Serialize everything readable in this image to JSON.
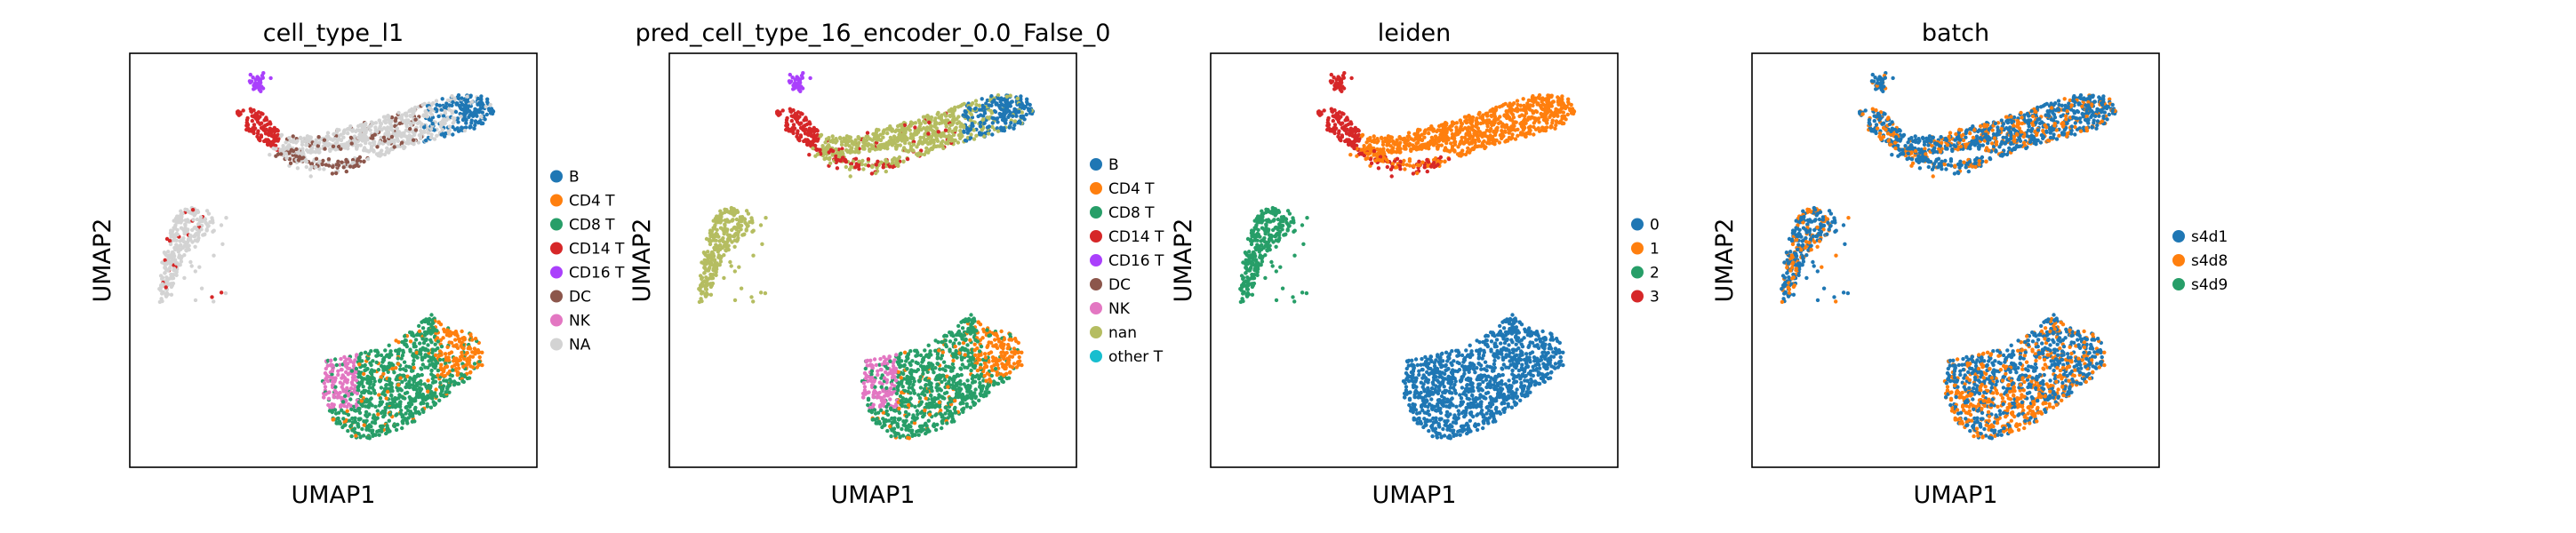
{
  "chart_data": [
    {
      "type": "scatter",
      "title": "cell_type_l1",
      "xlabel": "UMAP1",
      "ylabel": "UMAP2",
      "grid": false,
      "legend_placement": "right",
      "legend": [
        {
          "label": "B",
          "color": "#1f77b4"
        },
        {
          "label": "CD4 T",
          "color": "#ff7f0e"
        },
        {
          "label": "CD8 T",
          "color": "#279e68"
        },
        {
          "label": "CD14 T",
          "color": "#d62728"
        },
        {
          "label": "CD16 T",
          "color": "#aa40fc"
        },
        {
          "label": "DC",
          "color": "#8c564b"
        },
        {
          "label": "NK",
          "color": "#e377c2"
        },
        {
          "label": "NA",
          "color": "#d3d3d3"
        }
      ]
    },
    {
      "type": "scatter",
      "title": "pred_cell_type_16_encoder_0.0_False_0",
      "xlabel": "UMAP1",
      "ylabel": "UMAP2",
      "grid": false,
      "legend_placement": "right",
      "legend": [
        {
          "label": "B",
          "color": "#1f77b4"
        },
        {
          "label": "CD4 T",
          "color": "#ff7f0e"
        },
        {
          "label": "CD8 T",
          "color": "#279e68"
        },
        {
          "label": "CD14 T",
          "color": "#d62728"
        },
        {
          "label": "CD16 T",
          "color": "#aa40fc"
        },
        {
          "label": "DC",
          "color": "#8c564b"
        },
        {
          "label": "NK",
          "color": "#e377c2"
        },
        {
          "label": "nan",
          "color": "#b5bd61"
        },
        {
          "label": "other T",
          "color": "#17becf"
        }
      ]
    },
    {
      "type": "scatter",
      "title": "leiden",
      "xlabel": "UMAP1",
      "ylabel": "UMAP2",
      "grid": false,
      "legend_placement": "right",
      "legend": [
        {
          "label": "0",
          "color": "#1f77b4"
        },
        {
          "label": "1",
          "color": "#ff7f0e"
        },
        {
          "label": "2",
          "color": "#279e68"
        },
        {
          "label": "3",
          "color": "#d62728"
        }
      ]
    },
    {
      "type": "scatter",
      "title": "batch",
      "xlabel": "UMAP1",
      "ylabel": "UMAP2",
      "grid": false,
      "legend_placement": "right",
      "legend": [
        {
          "label": "s4d1",
          "color": "#1f77b4"
        },
        {
          "label": "s4d8",
          "color": "#ff7f0e"
        },
        {
          "label": "s4d9",
          "color": "#279e68"
        }
      ]
    }
  ]
}
